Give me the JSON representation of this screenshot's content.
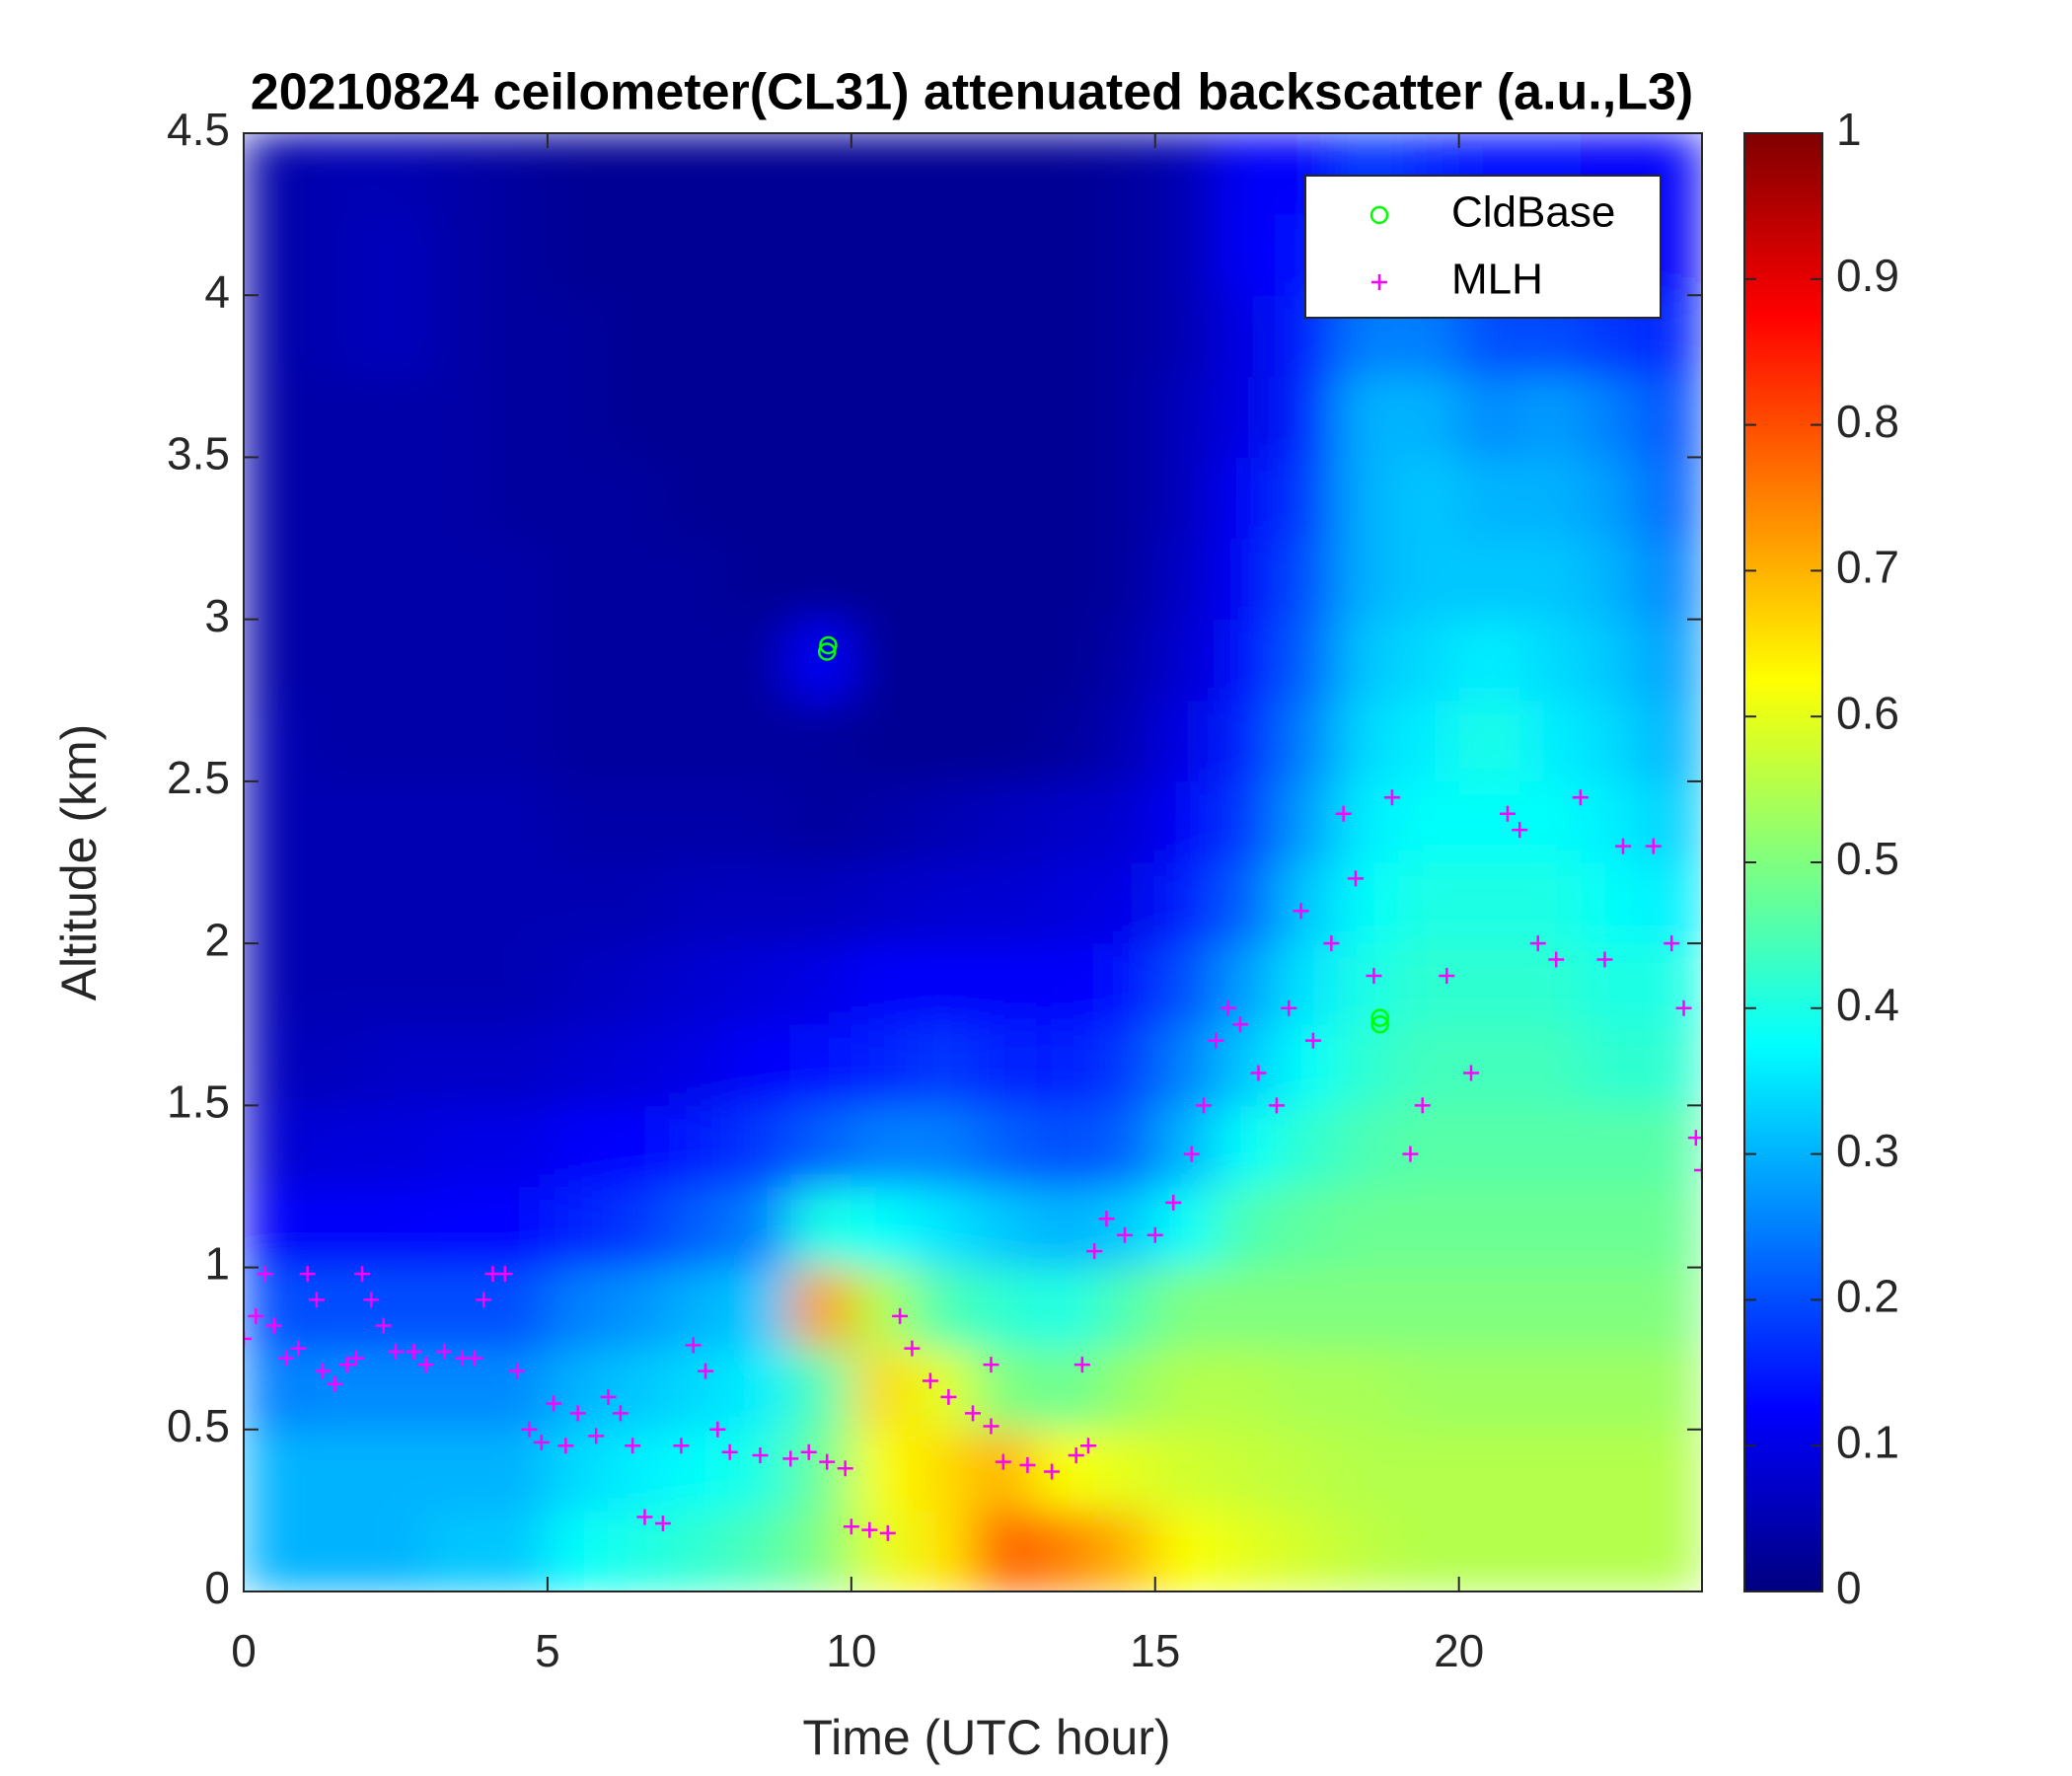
{
  "chart_data": {
    "type": "heatmap",
    "title": "20210824 ceilometer(CL31) attenuated backscatter (a.u.,L3)",
    "xlabel": "Time (UTC hour)",
    "ylabel": "Altitude (km)",
    "colormap": "jet",
    "x_bins": [
      0,
      1,
      2,
      3,
      4,
      5,
      6,
      7,
      8,
      9,
      10,
      11,
      12,
      13,
      14,
      15,
      16,
      17,
      18,
      19,
      20,
      21,
      22,
      23,
      24
    ],
    "y_bins": [
      0,
      0.25,
      0.5,
      0.75,
      1,
      1.25,
      1.5,
      1.75,
      2,
      2.25,
      2.5,
      2.75,
      3,
      3.25,
      3.5,
      3.75,
      4,
      4.25,
      4.5
    ],
    "z": [
      [
        0.3,
        0.3,
        0.3,
        0.32,
        0.32,
        0.38,
        0.4,
        0.42,
        0.45,
        0.5,
        0.6,
        0.65,
        0.78,
        0.75,
        0.7,
        0.62,
        0.6,
        0.58,
        0.56,
        0.55,
        0.55,
        0.55,
        0.55,
        0.55
      ],
      [
        0.3,
        0.3,
        0.3,
        0.3,
        0.3,
        0.34,
        0.36,
        0.38,
        0.4,
        0.48,
        0.62,
        0.66,
        0.7,
        0.62,
        0.6,
        0.58,
        0.57,
        0.56,
        0.55,
        0.55,
        0.55,
        0.55,
        0.55,
        0.55
      ],
      [
        0.25,
        0.26,
        0.26,
        0.26,
        0.26,
        0.3,
        0.32,
        0.34,
        0.36,
        0.45,
        0.66,
        0.6,
        0.5,
        0.48,
        0.52,
        0.55,
        0.55,
        0.54,
        0.54,
        0.53,
        0.53,
        0.53,
        0.53,
        0.53
      ],
      [
        0.2,
        0.2,
        0.2,
        0.2,
        0.2,
        0.25,
        0.27,
        0.3,
        0.32,
        0.72,
        0.55,
        0.45,
        0.42,
        0.4,
        0.45,
        0.5,
        0.5,
        0.5,
        0.5,
        0.5,
        0.5,
        0.5,
        0.5,
        0.5
      ],
      [
        0.12,
        0.12,
        0.12,
        0.13,
        0.13,
        0.16,
        0.18,
        0.22,
        0.25,
        0.4,
        0.38,
        0.35,
        0.32,
        0.3,
        0.32,
        0.38,
        0.45,
        0.47,
        0.48,
        0.48,
        0.48,
        0.48,
        0.48,
        0.48
      ],
      [
        0.08,
        0.09,
        0.09,
        0.1,
        0.1,
        0.12,
        0.13,
        0.15,
        0.18,
        0.22,
        0.25,
        0.25,
        0.22,
        0.2,
        0.22,
        0.3,
        0.38,
        0.42,
        0.45,
        0.46,
        0.46,
        0.46,
        0.46,
        0.46
      ],
      [
        0.06,
        0.06,
        0.07,
        0.07,
        0.07,
        0.08,
        0.09,
        0.1,
        0.12,
        0.14,
        0.16,
        0.18,
        0.16,
        0.15,
        0.18,
        0.25,
        0.32,
        0.38,
        0.42,
        0.44,
        0.44,
        0.44,
        0.42,
        0.42
      ],
      [
        0.05,
        0.05,
        0.05,
        0.05,
        0.05,
        0.06,
        0.07,
        0.08,
        0.09,
        0.1,
        0.12,
        0.12,
        0.12,
        0.12,
        0.14,
        0.2,
        0.28,
        0.35,
        0.4,
        0.42,
        0.42,
        0.42,
        0.4,
        0.4
      ],
      [
        0.05,
        0.05,
        0.05,
        0.05,
        0.05,
        0.05,
        0.05,
        0.06,
        0.06,
        0.06,
        0.07,
        0.08,
        0.08,
        0.09,
        0.1,
        0.15,
        0.22,
        0.32,
        0.38,
        0.4,
        0.4,
        0.4,
        0.38,
        0.36
      ],
      [
        0.05,
        0.05,
        0.05,
        0.05,
        0.05,
        0.04,
        0.04,
        0.04,
        0.04,
        0.03,
        0.04,
        0.05,
        0.06,
        0.07,
        0.08,
        0.12,
        0.18,
        0.28,
        0.36,
        0.38,
        0.38,
        0.38,
        0.36,
        0.33
      ],
      [
        0.05,
        0.04,
        0.04,
        0.04,
        0.04,
        0.03,
        0.03,
        0.03,
        0.03,
        0.03,
        0.02,
        0.02,
        0.02,
        0.03,
        0.05,
        0.1,
        0.16,
        0.25,
        0.34,
        0.36,
        0.4,
        0.36,
        0.34,
        0.3
      ],
      [
        0.04,
        0.04,
        0.04,
        0.04,
        0.04,
        0.03,
        0.03,
        0.03,
        0.03,
        0.12,
        0.02,
        0.02,
        0.02,
        0.02,
        0.04,
        0.08,
        0.14,
        0.22,
        0.32,
        0.34,
        0.36,
        0.34,
        0.32,
        0.28
      ],
      [
        0.04,
        0.04,
        0.04,
        0.04,
        0.04,
        0.03,
        0.03,
        0.03,
        0.02,
        0.02,
        0.02,
        0.02,
        0.02,
        0.02,
        0.03,
        0.07,
        0.12,
        0.2,
        0.3,
        0.32,
        0.32,
        0.32,
        0.3,
        0.25
      ],
      [
        0.04,
        0.04,
        0.04,
        0.04,
        0.03,
        0.03,
        0.03,
        0.02,
        0.02,
        0.02,
        0.02,
        0.02,
        0.02,
        0.02,
        0.03,
        0.06,
        0.12,
        0.18,
        0.3,
        0.32,
        0.3,
        0.3,
        0.28,
        0.22
      ],
      [
        0.04,
        0.04,
        0.04,
        0.04,
        0.03,
        0.03,
        0.02,
        0.02,
        0.02,
        0.02,
        0.02,
        0.02,
        0.02,
        0.02,
        0.03,
        0.06,
        0.1,
        0.16,
        0.3,
        0.3,
        0.26,
        0.28,
        0.25,
        0.2
      ],
      [
        0.04,
        0.05,
        0.06,
        0.04,
        0.03,
        0.03,
        0.02,
        0.02,
        0.02,
        0.02,
        0.02,
        0.02,
        0.02,
        0.02,
        0.03,
        0.05,
        0.1,
        0.15,
        0.25,
        0.25,
        0.2,
        0.2,
        0.18,
        0.16
      ],
      [
        0.04,
        0.05,
        0.06,
        0.04,
        0.03,
        0.02,
        0.02,
        0.02,
        0.02,
        0.02,
        0.02,
        0.02,
        0.02,
        0.02,
        0.03,
        0.05,
        0.12,
        0.14,
        0.2,
        0.2,
        0.16,
        0.15,
        0.14,
        0.12
      ],
      [
        0.04,
        0.05,
        0.05,
        0.04,
        0.03,
        0.02,
        0.02,
        0.02,
        0.02,
        0.02,
        0.02,
        0.02,
        0.02,
        0.02,
        0.03,
        0.05,
        0.12,
        0.12,
        0.18,
        0.16,
        0.14,
        0.14,
        0.12,
        0.12
      ]
    ],
    "clim": [
      0,
      1
    ],
    "cticks": [
      0,
      0.1,
      0.2,
      0.3,
      0.4,
      0.5,
      0.6,
      0.7,
      0.8,
      0.9,
      1
    ],
    "xlim": [
      0,
      24
    ],
    "xticks": [
      0,
      5,
      10,
      15,
      20
    ],
    "ylim": [
      0,
      4.5
    ],
    "yticks": [
      0,
      0.5,
      1,
      1.5,
      2,
      2.5,
      3,
      3.5,
      4,
      4.5
    ],
    "legend": "upper right",
    "series": [
      {
        "name": "CldBase",
        "type": "scatter",
        "marker": "o",
        "color": "#00ff00",
        "x": [
          9.6,
          9.62,
          18.7,
          18.7
        ],
        "y": [
          2.9,
          2.92,
          1.75,
          1.77
        ]
      },
      {
        "name": "MLH",
        "type": "scatter",
        "marker": "+",
        "color": "#ff00ff",
        "x": [
          0,
          0.2,
          0.35,
          0.5,
          0.7,
          0.9,
          1.05,
          1.2,
          1.3,
          1.5,
          1.7,
          1.85,
          1.95,
          2.1,
          2.3,
          2.5,
          2.8,
          3.0,
          3.3,
          3.6,
          3.8,
          3.95,
          4.1,
          4.3,
          4.5,
          4.7,
          4.9,
          5.1,
          5.3,
          5.5,
          5.8,
          6.0,
          6.2,
          6.4,
          6.6,
          6.9,
          7.2,
          7.4,
          7.6,
          7.8,
          8.0,
          8.5,
          9.0,
          9.3,
          9.6,
          9.9,
          10.0,
          10.3,
          10.6,
          10.8,
          11.0,
          11.3,
          11.6,
          12.0,
          12.3,
          12.3,
          12.5,
          12.9,
          13.3,
          13.7,
          13.9,
          13.8,
          14.0,
          14.2,
          14.5,
          15.0,
          15.3,
          15.6,
          15.8,
          16.0,
          16.2,
          16.4,
          16.7,
          17.0,
          17.2,
          17.4,
          17.6,
          17.9,
          18.1,
          18.3,
          18.6,
          18.9,
          19.2,
          19.4,
          19.8,
          20.2,
          20.8,
          21.0,
          21.3,
          21.6,
          22.0,
          22.4,
          22.7,
          23.2,
          23.5,
          23.7,
          23.9,
          24.0
        ],
        "y": [
          0.78,
          0.85,
          0.98,
          0.82,
          0.72,
          0.75,
          0.98,
          0.9,
          0.68,
          0.64,
          0.7,
          0.72,
          0.98,
          0.9,
          0.82,
          0.74,
          0.74,
          0.7,
          0.74,
          0.72,
          0.72,
          0.9,
          0.98,
          0.98,
          0.68,
          0.5,
          0.46,
          0.58,
          0.45,
          0.55,
          0.48,
          0.6,
          0.55,
          0.45,
          0.23,
          0.21,
          0.45,
          0.76,
          0.68,
          0.5,
          0.43,
          0.42,
          0.41,
          0.43,
          0.4,
          0.38,
          0.2,
          0.19,
          0.18,
          0.85,
          0.75,
          0.65,
          0.6,
          0.55,
          0.51,
          0.7,
          0.4,
          0.39,
          0.37,
          0.42,
          0.45,
          0.7,
          1.05,
          1.15,
          1.1,
          1.1,
          1.2,
          1.35,
          1.5,
          1.7,
          1.8,
          1.75,
          1.6,
          1.5,
          1.8,
          2.1,
          1.7,
          2.0,
          2.4,
          2.2,
          1.9,
          2.45,
          1.35,
          1.5,
          1.9,
          1.6,
          2.4,
          2.35,
          2.0,
          1.95,
          2.45,
          1.95,
          2.3,
          2.3,
          2.0,
          1.8,
          1.4,
          1.3
        ]
      }
    ]
  }
}
